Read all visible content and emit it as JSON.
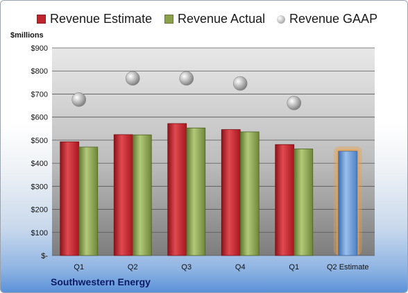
{
  "legend": {
    "estimate_label": "Revenue Estimate",
    "actual_label": "Revenue Actual",
    "gaap_label": "Revenue GAAP"
  },
  "units_label": "$millions",
  "company_label": "Southwestern Energy",
  "colors": {
    "estimate": "#c0242c",
    "actual": "#8aa14a",
    "gaap": "#a8a8a8",
    "future_estimate": "#6f9fd8",
    "highlight": "#f0a040"
  },
  "chart_data": {
    "type": "bar",
    "categories": [
      "Q1",
      "Q2",
      "Q3",
      "Q4",
      "Q1",
      "Q2 Estimate"
    ],
    "y_tick_labels": [
      "$-",
      "$100",
      "$200",
      "$300",
      "$400",
      "$500",
      "$600",
      "$700",
      "$800",
      "$900"
    ],
    "ylim": [
      0,
      900
    ],
    "grid": true,
    "legend_position": "top",
    "series": [
      {
        "name": "Revenue Estimate",
        "type": "bar",
        "values": [
          493,
          524,
          572,
          546,
          481,
          452
        ]
      },
      {
        "name": "Revenue Actual",
        "type": "bar",
        "values": [
          470,
          523,
          553,
          536,
          462,
          null
        ]
      },
      {
        "name": "Revenue GAAP",
        "type": "scatter",
        "values": [
          676,
          768,
          768,
          746,
          661,
          null
        ]
      }
    ]
  }
}
